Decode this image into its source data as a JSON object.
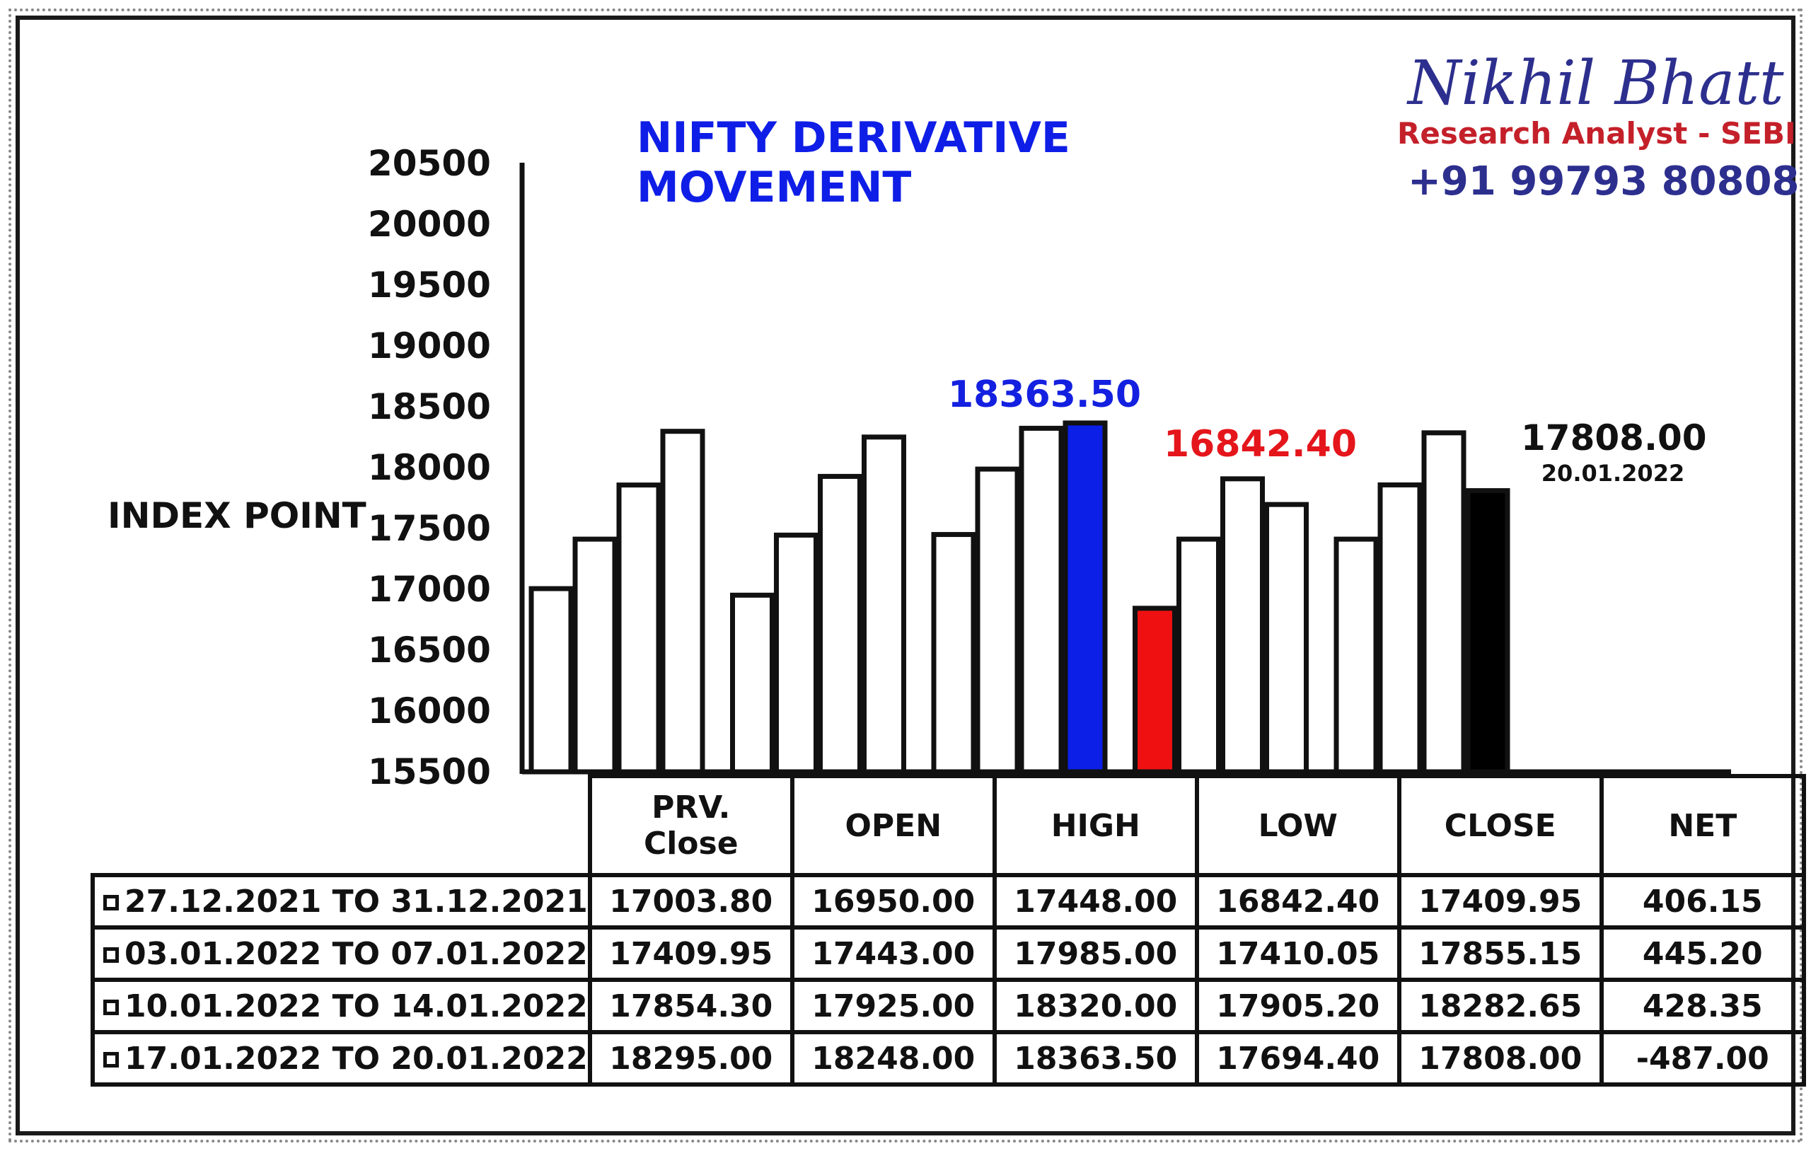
{
  "brand": {
    "name": "Nikhil Bhatt",
    "role": "Research Analyst - SEBI",
    "phone": "+91 99793 80808"
  },
  "chart_data": {
    "type": "bar",
    "title": "NIFTY DERIVATIVE MOVEMENT",
    "ylabel": "INDEX POINT",
    "xlabel": "",
    "ylim": [
      15500,
      20500
    ],
    "yticks": [
      "20500",
      "20000",
      "19500",
      "19000",
      "18500",
      "18000",
      "17500",
      "17000",
      "16500",
      "16000",
      "15500"
    ],
    "categories": [
      "PRV. Close",
      "OPEN",
      "HIGH",
      "LOW",
      "CLOSE"
    ],
    "series": [
      {
        "values": [
          17003.8,
          16950.0,
          17448.0,
          16842.4,
          17409.95
        ]
      },
      {
        "values": [
          17409.95,
          17443.0,
          17985.0,
          17410.05,
          17855.15
        ]
      },
      {
        "values": [
          17854.3,
          17925.0,
          18320.0,
          17905.2,
          18282.65
        ]
      },
      {
        "values": [
          18295.0,
          18248.0,
          18363.5,
          17694.4,
          17808.0
        ]
      }
    ],
    "highlights": [
      {
        "category": "HIGH",
        "series_index": 3,
        "color": "#0b1fe6"
      },
      {
        "category": "LOW",
        "series_index": 0,
        "color": "#ef1111"
      },
      {
        "category": "CLOSE",
        "series_index": 3,
        "color": "#000000"
      }
    ],
    "annotations": {
      "high": "18363.50",
      "low": "16842.40",
      "close": "17808.00",
      "close_date": "20.01.2022"
    },
    "grid": false,
    "legend": "table-bottom"
  },
  "table": {
    "headers": [
      [
        "PRV.",
        "Close"
      ],
      "OPEN",
      "HIGH",
      "LOW",
      "CLOSE",
      "NET"
    ],
    "rows": [
      {
        "period": "27.12.2021 TO 31.12.2021",
        "cells": [
          "17003.80",
          "16950.00",
          "17448.00",
          "16842.40",
          "17409.95",
          "406.15"
        ]
      },
      {
        "period": "03.01.2022 TO 07.01.2022",
        "cells": [
          "17409.95",
          "17443.00",
          "17985.00",
          "17410.05",
          "17855.15",
          "445.20"
        ]
      },
      {
        "period": "10.01.2022 TO 14.01.2022",
        "cells": [
          "17854.30",
          "17925.00",
          "18320.00",
          "17905.20",
          "18282.65",
          "428.35"
        ]
      },
      {
        "period": "17.01.2022 TO 20.01.2022",
        "cells": [
          "18295.00",
          "18248.00",
          "18363.50",
          "17694.40",
          "17808.00",
          "-487.00"
        ]
      }
    ]
  }
}
